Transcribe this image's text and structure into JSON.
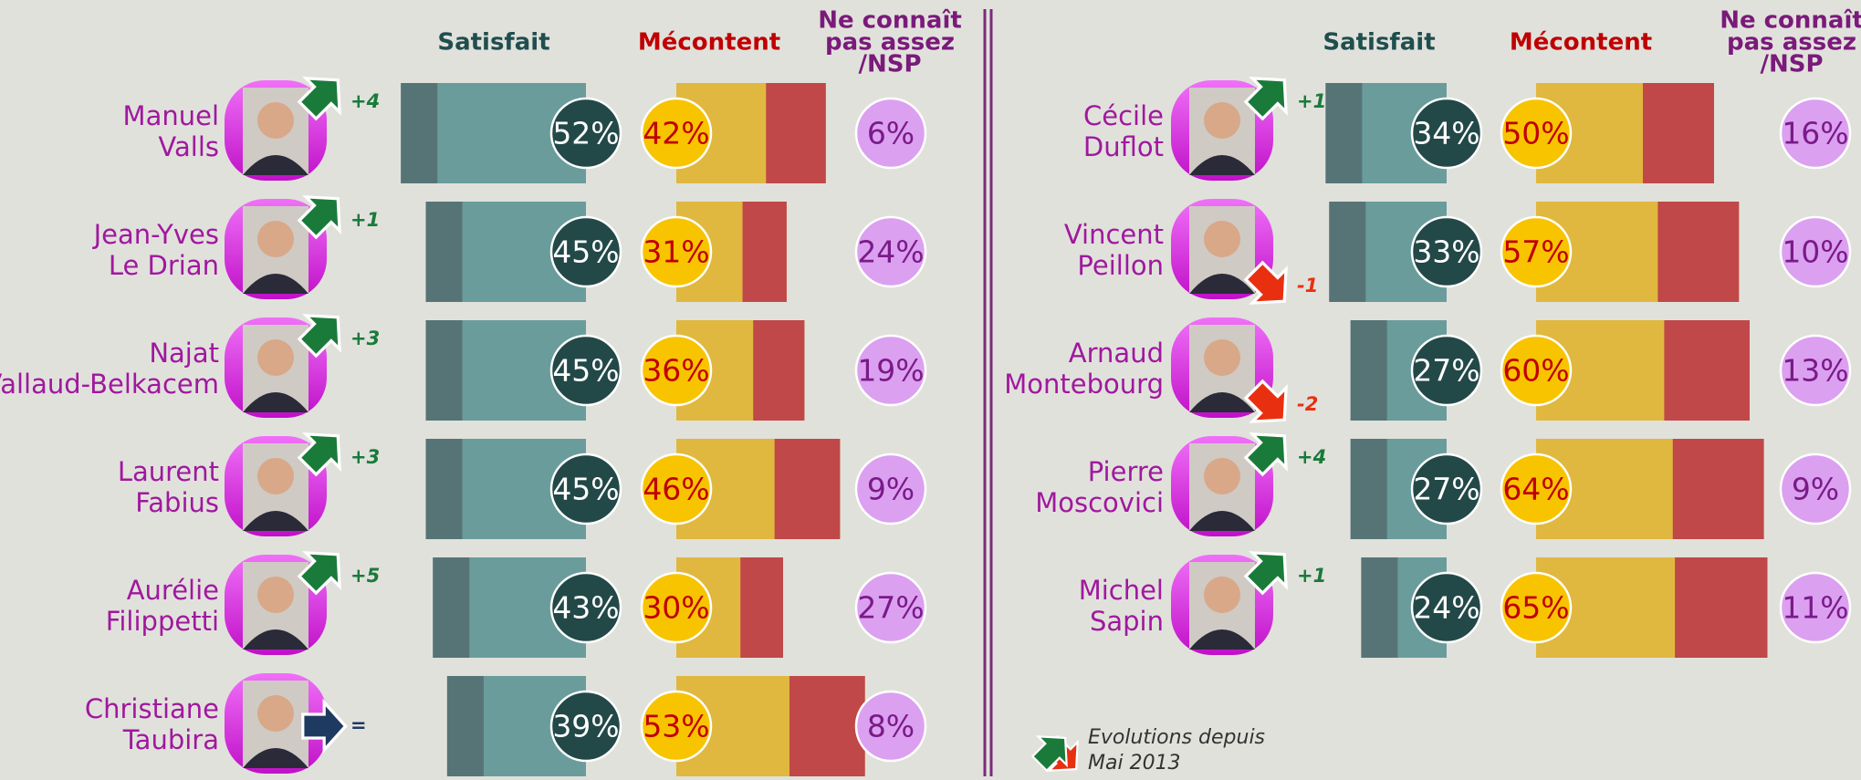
{
  "chart_data": [
    {
      "type": "bar",
      "categories": [
        [
          "Manuel",
          "Valls"
        ],
        [
          "Jean-Yves",
          "Le Drian"
        ],
        [
          "Najat",
          "Vallaud-Belkacem"
        ],
        [
          "Laurent",
          "Fabius"
        ],
        [
          "Aurélie",
          "Filippetti"
        ],
        [
          "Christiane",
          "Taubira"
        ]
      ],
      "series": [
        {
          "name": [
            "Satisfait"
          ],
          "color": "#6a9c9c",
          "values": [
            52,
            45,
            45,
            45,
            43,
            39
          ],
          "value_labels": [
            "52%",
            "45%",
            "45%",
            "45%",
            "43%",
            "39%"
          ]
        },
        {
          "name": [
            "Mécontent"
          ],
          "color": "#e0b840",
          "values": [
            42,
            31,
            36,
            46,
            30,
            53
          ],
          "value_labels": [
            "42%",
            "31%",
            "36%",
            "46%",
            "30%",
            "53%"
          ]
        },
        {
          "name": [
            "Ne connaît",
            "pas assez",
            "/NSP"
          ],
          "color": "#dca0f0",
          "values": [
            6,
            24,
            19,
            9,
            27,
            8
          ],
          "value_labels": [
            "6%",
            "24%",
            "19%",
            "9%",
            "27%",
            "8%"
          ]
        }
      ],
      "evolution": {
        "values": [
          4,
          1,
          3,
          3,
          5,
          0
        ],
        "value_labels": [
          "+4",
          "+1",
          "+3",
          "+3",
          "+5",
          "="
        ]
      }
    },
    {
      "type": "bar",
      "categories": [
        [
          "Cécile",
          "Duflot"
        ],
        [
          "Vincent",
          "Peillon"
        ],
        [
          "Arnaud",
          "Montebourg"
        ],
        [
          "Pierre",
          "Moscovici"
        ],
        [
          "Michel",
          "Sapin"
        ]
      ],
      "series": [
        {
          "name": [
            "Satisfait"
          ],
          "color": "#6a9c9c",
          "values": [
            34,
            33,
            27,
            27,
            24
          ],
          "value_labels": [
            "34%",
            "33%",
            "27%",
            "27%",
            "24%"
          ]
        },
        {
          "name": [
            "Mécontent"
          ],
          "color": "#e0b840",
          "values": [
            50,
            57,
            60,
            64,
            65
          ],
          "value_labels": [
            "50%",
            "57%",
            "60%",
            "64%",
            "65%"
          ]
        },
        {
          "name": [
            "Ne connaît",
            "pas assez",
            "/NSP"
          ],
          "color": "#dca0f0",
          "values": [
            16,
            10,
            13,
            9,
            11
          ],
          "value_labels": [
            "16%",
            "10%",
            "13%",
            "9%",
            "11%"
          ]
        }
      ],
      "evolution": {
        "values": [
          1,
          -1,
          -2,
          4,
          1
        ],
        "value_labels": [
          "+1",
          "-1",
          "-2",
          "+4",
          "+1"
        ]
      },
      "note": [
        "Evolutions depuis",
        "Mai 2013"
      ]
    }
  ]
}
